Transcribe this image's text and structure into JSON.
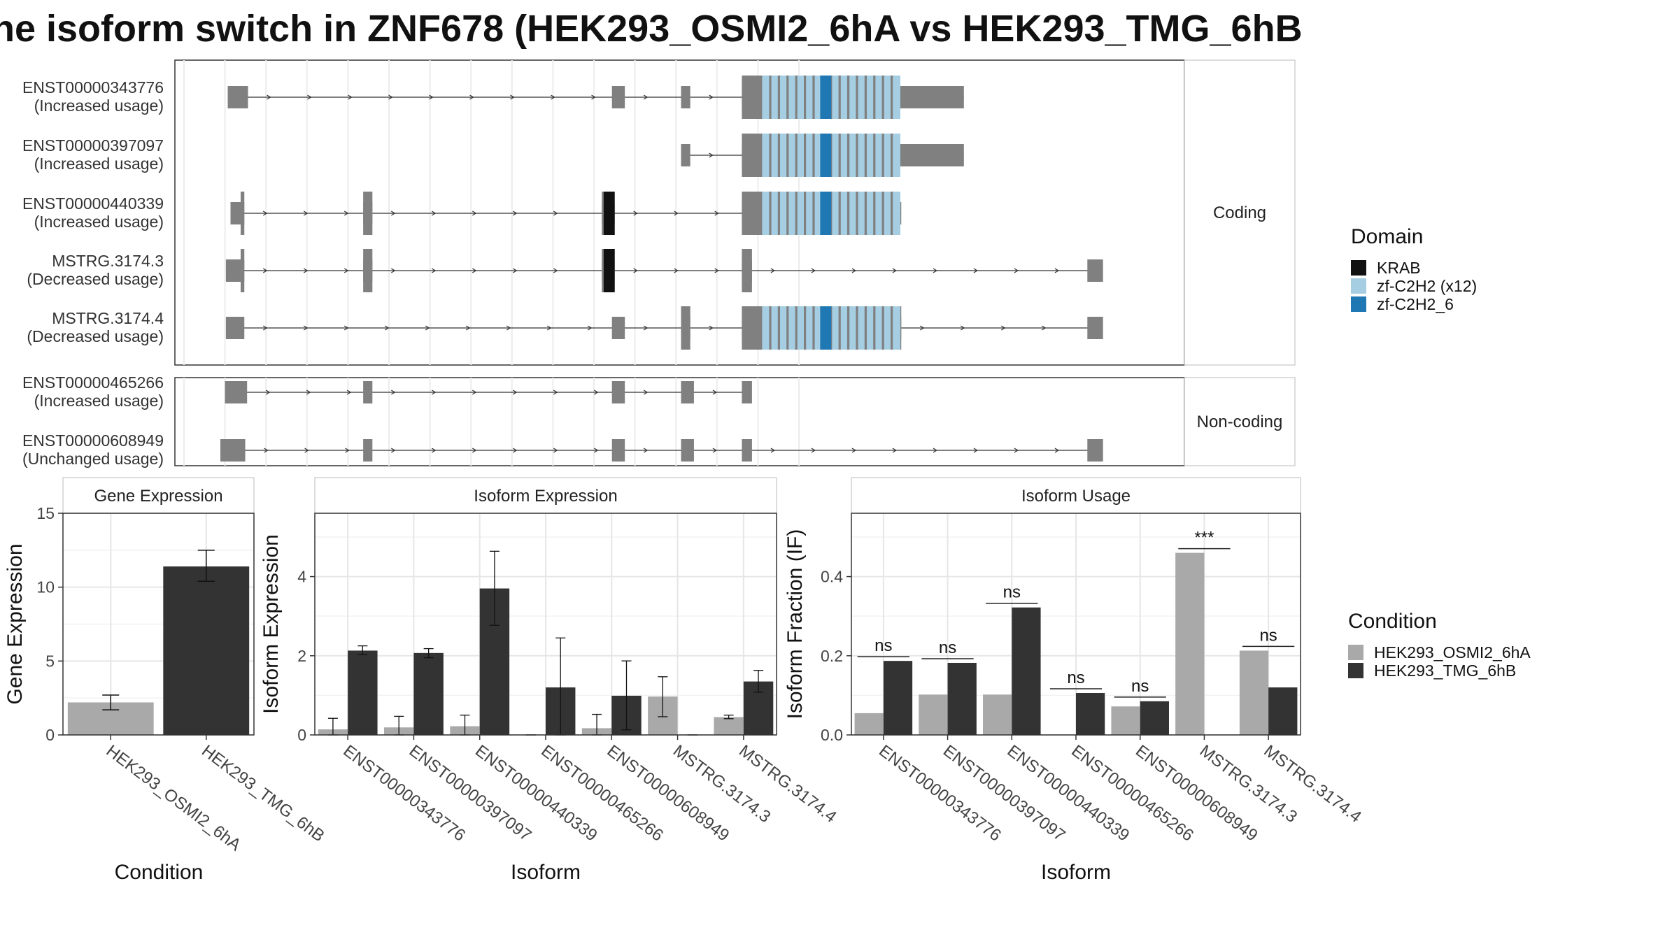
{
  "title": "he isoform switch in ZNF678 (HEK293_OSMI2_6hA vs HEK293_TMG_6hB",
  "colors": {
    "exon": "#808080",
    "KRAB": "#111111",
    "zf_light": "#a6cee3",
    "zf_dark": "#1f78b4",
    "cond_a": "#a9a9a9",
    "cond_b": "#333333"
  },
  "structure": {
    "coding_label": "Coding",
    "noncoding_label": "Non-coding",
    "coding": [
      {
        "id": "ENST00000343776",
        "usage": "(Increased usage)",
        "exons": [
          [
            0.008,
            0.03
          ],
          [
            0.425,
            0.439
          ],
          [
            0.5,
            0.51
          ],
          [
            0.566,
            0.807
          ]
        ],
        "cds": [
          0.566,
          0.73
        ],
        "domains": [
          [
            "zf_light",
            0.588,
            0.738
          ],
          [
            "zf_dark",
            0.651,
            0.663
          ]
        ]
      },
      {
        "id": "ENST00000397097",
        "usage": "(Increased usage)",
        "exons": [
          [
            0.5,
            0.51
          ],
          [
            0.566,
            0.807
          ]
        ],
        "cds": [
          0.566,
          0.73
        ],
        "domains": [
          [
            "zf_light",
            0.588,
            0.738
          ],
          [
            "zf_dark",
            0.651,
            0.663
          ]
        ]
      },
      {
        "id": "ENST00000440339",
        "usage": "(Increased usage)",
        "exons": [
          [
            0.011,
            0.026
          ],
          [
            0.155,
            0.165
          ],
          [
            0.414,
            0.428
          ],
          [
            0.566,
            0.739
          ]
        ],
        "cds": [
          0.022,
          0.738
        ],
        "domains": [
          [
            "KRAB",
            0.416,
            0.428
          ],
          [
            "zf_light",
            0.588,
            0.738
          ],
          [
            "zf_dark",
            0.651,
            0.663
          ]
        ]
      },
      {
        "id": "MSTRG.3174.3",
        "usage": "(Decreased usage)",
        "exons": [
          [
            0.006,
            0.026
          ],
          [
            0.155,
            0.165
          ],
          [
            0.414,
            0.428
          ],
          [
            0.566,
            0.577
          ],
          [
            0.941,
            0.958
          ]
        ],
        "cds": [
          0.022,
          0.941
        ],
        "domains": [
          [
            "KRAB",
            0.416,
            0.428
          ]
        ]
      },
      {
        "id": "MSTRG.3174.4",
        "usage": "(Decreased usage)",
        "exons": [
          [
            0.006,
            0.026
          ],
          [
            0.425,
            0.439
          ],
          [
            0.5,
            0.51
          ],
          [
            0.566,
            0.739
          ],
          [
            0.941,
            0.958
          ]
        ],
        "cds": [
          0.493,
          0.941
        ],
        "domains": [
          [
            "zf_light",
            0.588,
            0.738
          ],
          [
            "zf_dark",
            0.651,
            0.663
          ]
        ]
      }
    ],
    "noncoding": [
      {
        "id": "ENST00000465266",
        "usage": "(Increased usage)",
        "exons": [
          [
            0.005,
            0.029
          ],
          [
            0.155,
            0.165
          ],
          [
            0.425,
            0.439
          ],
          [
            0.5,
            0.514
          ],
          [
            0.566,
            0.577
          ]
        ]
      },
      {
        "id": "ENST00000608949",
        "usage": "(Unchanged usage)",
        "exons": [
          [
            0.0,
            0.027
          ],
          [
            0.155,
            0.165
          ],
          [
            0.425,
            0.439
          ],
          [
            0.5,
            0.514
          ],
          [
            0.566,
            0.577
          ],
          [
            0.941,
            0.958
          ]
        ]
      }
    ]
  },
  "legend_domain": {
    "title": "Domain",
    "items": [
      {
        "label": "KRAB",
        "color_key": "KRAB"
      },
      {
        "label": "zf-C2H2 (x12)",
        "color_key": "zf_light"
      },
      {
        "label": "zf-C2H2_6",
        "color_key": "zf_dark"
      }
    ]
  },
  "legend_condition": {
    "title": "Condition",
    "items": [
      {
        "label": "HEK293_OSMI2_6hA",
        "color_key": "cond_a"
      },
      {
        "label": "HEK293_TMG_6hB",
        "color_key": "cond_b"
      }
    ]
  },
  "chart_data": [
    {
      "type": "bar",
      "title": "Gene Expression",
      "xlabel": "Condition",
      "ylabel": "Gene Expression",
      "categories": [
        "HEK293_OSMI2_6hA",
        "HEK293_TMG_6hB"
      ],
      "values": [
        2.2,
        11.4
      ],
      "err_low": [
        1.7,
        10.4
      ],
      "err_high": [
        2.7,
        12.5
      ],
      "ylim": [
        0,
        15
      ],
      "yticks": [
        0,
        5,
        10,
        15
      ],
      "grid": true
    },
    {
      "type": "bar",
      "title": "Isoform Expression",
      "xlabel": "Isoform",
      "ylabel": "Isoform Expression",
      "categories": [
        "ENST00000343776",
        "ENST00000397097",
        "ENST00000440339",
        "ENST00000465266",
        "ENST00000608949",
        "MSTRG.3174.3",
        "MSTRG.3174.4"
      ],
      "series": [
        {
          "name": "HEK293_OSMI2_6hA",
          "values": [
            0.14,
            0.19,
            0.22,
            0.0,
            0.17,
            0.97,
            0.45
          ],
          "err_low": [
            0.0,
            0.0,
            0.0,
            0.0,
            0.0,
            0.46,
            0.41
          ],
          "err_high": [
            0.42,
            0.47,
            0.5,
            0.0,
            0.52,
            1.47,
            0.5
          ]
        },
        {
          "name": "HEK293_TMG_6hB",
          "values": [
            2.13,
            2.07,
            3.7,
            1.2,
            0.99,
            0.0,
            1.35
          ],
          "err_low": [
            2.03,
            1.95,
            2.77,
            0.0,
            0.13,
            0.0,
            1.08
          ],
          "err_high": [
            2.25,
            2.18,
            4.64,
            2.45,
            1.87,
            0.0,
            1.63
          ]
        }
      ],
      "ylim": [
        0,
        5.6
      ],
      "yticks": [
        0,
        2,
        4
      ],
      "grid": true
    },
    {
      "type": "bar",
      "title": "Isoform Usage",
      "xlabel": "Isoform",
      "ylabel": "Isoform Fraction (IF)",
      "categories": [
        "ENST00000343776",
        "ENST00000397097",
        "ENST00000440339",
        "ENST00000465266",
        "ENST00000608949",
        "MSTRG.3174.3",
        "MSTRG.3174.4"
      ],
      "series": [
        {
          "name": "HEK293_OSMI2_6hA",
          "values": [
            0.055,
            0.102,
            0.102,
            0.0,
            0.072,
            0.46,
            0.213
          ]
        },
        {
          "name": "HEK293_TMG_6hB",
          "values": [
            0.187,
            0.182,
            0.322,
            0.106,
            0.085,
            0.0,
            0.12
          ]
        }
      ],
      "significance": [
        "ns",
        "ns",
        "ns",
        "ns",
        "ns",
        "***",
        "ns"
      ],
      "ylim": [
        0,
        0.56
      ],
      "yticks": [
        0.0,
        0.2,
        0.4
      ],
      "grid": true
    }
  ]
}
